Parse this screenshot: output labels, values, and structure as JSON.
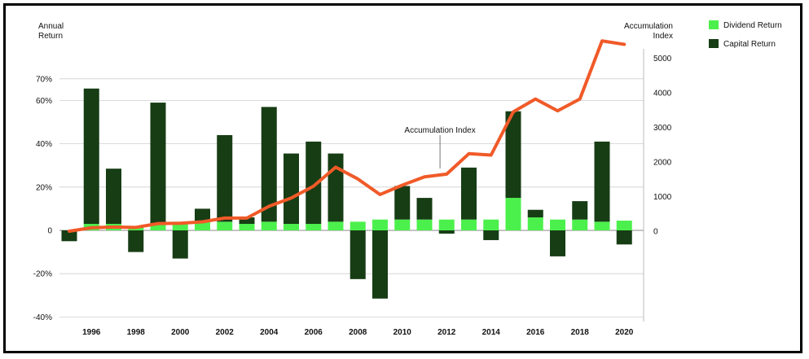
{
  "chart_data": {
    "type": "bar",
    "x": [
      1995,
      1996,
      1997,
      1998,
      1999,
      2000,
      2001,
      2002,
      2003,
      2004,
      2005,
      2006,
      2007,
      2008,
      2009,
      2010,
      2011,
      2012,
      2013,
      2014,
      2015,
      2016,
      2017,
      2018,
      2019,
      2020
    ],
    "x_tick_labels": [
      "1996",
      "1998",
      "2000",
      "2002",
      "2004",
      "2006",
      "2008",
      "2010",
      "2012",
      "2014",
      "2016",
      "2018",
      "2020"
    ],
    "series": [
      {
        "name": "Dividend Return",
        "color": "#4cf04c",
        "values": [
          0,
          3,
          3,
          2,
          3,
          4,
          4,
          4,
          3,
          4,
          3,
          3,
          4,
          4,
          5,
          5,
          5,
          5,
          5,
          5,
          15,
          6,
          5,
          5,
          4,
          4.5
        ]
      },
      {
        "name": "Capital Return",
        "color": "#173d15",
        "values": [
          -5,
          62.5,
          25.5,
          -10,
          56,
          -13,
          6,
          40,
          3,
          53,
          32.5,
          38,
          31.5,
          -22.5,
          -31.5,
          15.5,
          10,
          -1.5,
          24,
          -4.5,
          40,
          3.5,
          -12,
          8.5,
          37,
          -6.5
        ]
      },
      {
        "name": "Accumulation Index",
        "color": "#f05a28",
        "axis": "right",
        "values": [
          0,
          100,
          120,
          110,
          220,
          230,
          270,
          380,
          380,
          720,
          960,
          1300,
          1850,
          1510,
          1060,
          1330,
          1570,
          1650,
          2240,
          2200,
          3450,
          3820,
          3480,
          3820,
          5500,
          5400
        ]
      }
    ],
    "left_axis": {
      "label_line1": "Annual",
      "label_line2": "Return",
      "ticks": [
        -40,
        -20,
        0,
        20,
        40,
        60,
        70
      ],
      "tick_labels": [
        "-40%",
        "-20%",
        "0",
        "20%",
        "40%",
        "60%",
        "70%"
      ],
      "ylim": [
        -40,
        70
      ]
    },
    "right_axis": {
      "label_line1": "Accumulation",
      "label_line2": "Index",
      "ticks": [
        0,
        1000,
        2000,
        3000,
        4000,
        5000
      ],
      "tick_labels": [
        "0",
        "1000",
        "2000",
        "3000",
        "4000",
        "5000"
      ]
    },
    "annotation": {
      "text": "Accumulation Index",
      "x": 2011.7
    },
    "legend": {
      "placement": "top-right",
      "entries": [
        "Dividend Return",
        "Capital Return"
      ]
    },
    "grid": true
  }
}
